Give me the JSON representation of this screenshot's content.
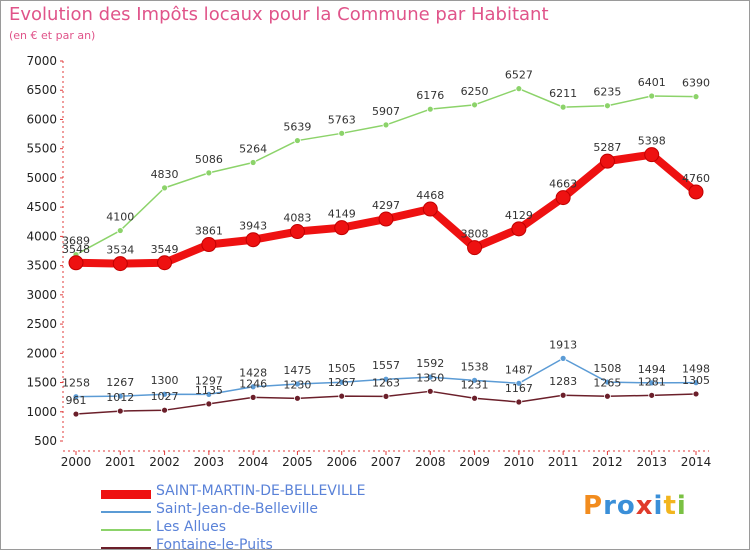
{
  "title": "Evolution des Impôts locaux pour la Commune par Habitant",
  "subtitle": "(en € et par an)",
  "brand": {
    "text": "Proxiti",
    "colors": [
      "#f28c1e",
      "#3a8fd8",
      "#3a8fd8",
      "#e03b2b",
      "#3a8fd8",
      "#f2b51e",
      "#7ac143"
    ]
  },
  "chart_data": {
    "type": "line",
    "x": [
      2000,
      2001,
      2002,
      2003,
      2004,
      2005,
      2006,
      2007,
      2008,
      2009,
      2010,
      2011,
      2012,
      2013,
      2014
    ],
    "ylim": [
      500,
      7000
    ],
    "yticks": [
      500,
      1000,
      1500,
      2000,
      2500,
      3000,
      3500,
      4000,
      4500,
      5000,
      5500,
      6000,
      6500,
      7000
    ],
    "grid": false,
    "legend": "bottom-left",
    "series": [
      {
        "name": "SAINT-MARTIN-DE-BELLEVILLE",
        "color": "#ee1111",
        "values": [
          3548,
          3534,
          3549,
          3861,
          3943,
          4083,
          4149,
          4297,
          4468,
          3808,
          4129,
          4663,
          5287,
          5398,
          4760
        ]
      },
      {
        "name": "Saint-Jean-de-Belleville",
        "color": "#5b9bd5",
        "values": [
          1258,
          1267,
          1300,
          1297,
          1428,
          1475,
          1505,
          1557,
          1592,
          1538,
          1487,
          1913,
          1508,
          1494,
          1498
        ]
      },
      {
        "name": "Les Allues",
        "color": "#8cd36a",
        "values": [
          3689,
          4100,
          4830,
          5086,
          5264,
          5639,
          5763,
          5907,
          6176,
          6250,
          6527,
          6211,
          6235,
          6401,
          6390
        ]
      },
      {
        "name": "Fontaine-le-Puits",
        "color": "#6b1f2a",
        "values": [
          961,
          1012,
          1027,
          1135,
          1246,
          1230,
          1267,
          1263,
          1350,
          1231,
          1167,
          1283,
          1265,
          1281,
          1305
        ]
      }
    ]
  }
}
